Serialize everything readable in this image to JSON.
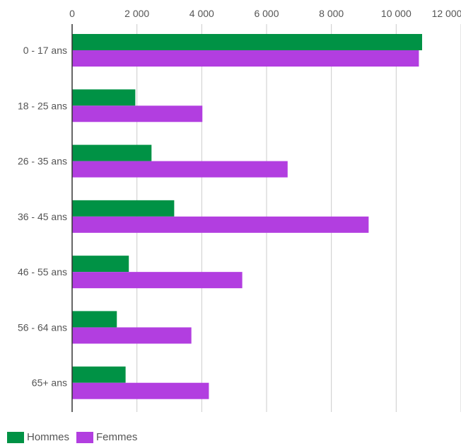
{
  "chart_data": {
    "type": "bar",
    "orientation": "horizontal",
    "categories": [
      "0 - 17 ans",
      "18 - 25 ans",
      "26 - 35 ans",
      "36 - 45 ans",
      "46 - 55 ans",
      "56 - 64 ans",
      "65+ ans"
    ],
    "series": [
      {
        "name": "Hommes",
        "color": "#009245",
        "values": [
          10800,
          1950,
          2450,
          3150,
          1750,
          1380,
          1650
        ]
      },
      {
        "name": "Femmes",
        "color": "#b23ee0",
        "values": [
          10700,
          4020,
          6650,
          9150,
          5250,
          3680,
          4220
        ]
      }
    ],
    "x_ticks": [
      0,
      2000,
      4000,
      6000,
      8000,
      10000,
      12000
    ],
    "x_tick_labels": [
      "0",
      "2 000",
      "4 000",
      "6 000",
      "8 000",
      "10 000",
      "12 000"
    ],
    "xlim": [
      0,
      12000
    ],
    "grid": true,
    "x_axis_position": "top",
    "legend_position": "bottom-left"
  }
}
